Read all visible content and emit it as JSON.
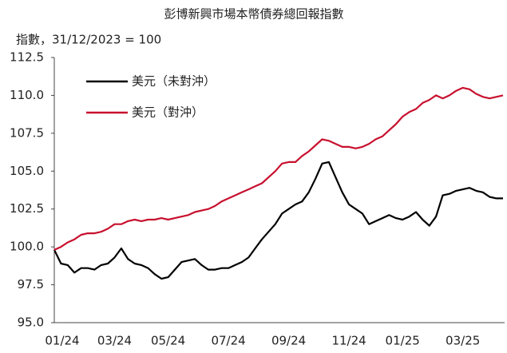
{
  "chart_data": {
    "type": "line",
    "title": "彭博新興市場本幣債券總回報指數",
    "y_label": "指數，31/12/2023 = 100",
    "categories": [
      "01/24",
      null,
      null,
      null,
      null,
      null,
      null,
      null,
      null,
      "03/24",
      null,
      null,
      null,
      null,
      null,
      null,
      null,
      "05/24",
      null,
      null,
      null,
      null,
      null,
      null,
      null,
      null,
      "07/24",
      null,
      null,
      null,
      null,
      null,
      null,
      null,
      null,
      "09/24",
      null,
      null,
      null,
      null,
      null,
      null,
      null,
      null,
      "11/24",
      null,
      null,
      null,
      null,
      null,
      null,
      null,
      "01/25",
      null,
      null,
      null,
      null,
      null,
      null,
      null,
      null,
      "03/25",
      null,
      null,
      null,
      null,
      null,
      null
    ],
    "series": [
      {
        "name": "美元（未對沖）",
        "color": "#000000",
        "values": [
          99.8,
          98.9,
          98.8,
          98.3,
          98.6,
          98.6,
          98.5,
          98.8,
          98.9,
          99.3,
          99.9,
          99.2,
          98.9,
          98.8,
          98.6,
          98.2,
          97.9,
          98.0,
          98.5,
          99.0,
          99.1,
          99.2,
          98.8,
          98.5,
          98.5,
          98.6,
          98.6,
          98.8,
          99.0,
          99.3,
          99.9,
          100.5,
          101.0,
          101.5,
          102.2,
          102.5,
          102.8,
          103.0,
          103.6,
          104.5,
          105.5,
          105.6,
          104.6,
          103.6,
          102.8,
          102.5,
          102.2,
          101.5,
          101.7,
          101.9,
          102.1,
          101.9,
          101.8,
          102.0,
          102.3,
          101.8,
          101.4,
          102.0,
          103.4,
          103.5,
          103.7,
          103.8,
          103.9,
          103.7,
          103.6,
          103.3,
          103.2,
          103.2
        ]
      },
      {
        "name": "美元（對沖）",
        "color": "#c8102e",
        "values": [
          99.8,
          100.0,
          100.3,
          100.5,
          100.8,
          100.9,
          100.9,
          101.0,
          101.2,
          101.5,
          101.5,
          101.7,
          101.8,
          101.7,
          101.8,
          101.8,
          101.9,
          101.8,
          101.9,
          102.0,
          102.1,
          102.3,
          102.4,
          102.5,
          102.7,
          103.0,
          103.2,
          103.4,
          103.6,
          103.8,
          104.0,
          104.2,
          104.6,
          105.0,
          105.5,
          105.6,
          105.6,
          106.0,
          106.3,
          106.7,
          107.1,
          107.0,
          106.8,
          106.6,
          106.6,
          106.5,
          106.6,
          106.8,
          107.1,
          107.3,
          107.7,
          108.1,
          108.6,
          108.9,
          109.1,
          109.5,
          109.7,
          110.0,
          109.8,
          110.0,
          110.3,
          110.5,
          110.4,
          110.1,
          109.9,
          109.8,
          109.9,
          110.0
        ]
      }
    ],
    "ylim": [
      95,
      112.5
    ],
    "yticks": [
      {
        "value": 95,
        "label": "95.0"
      },
      97.5,
      {
        "value": 100,
        "label": "100.0"
      },
      102.5,
      {
        "value": 105,
        "label": "105.0"
      },
      107.5,
      {
        "value": 110,
        "label": "110.0"
      },
      112.5
    ],
    "grid": false
  }
}
